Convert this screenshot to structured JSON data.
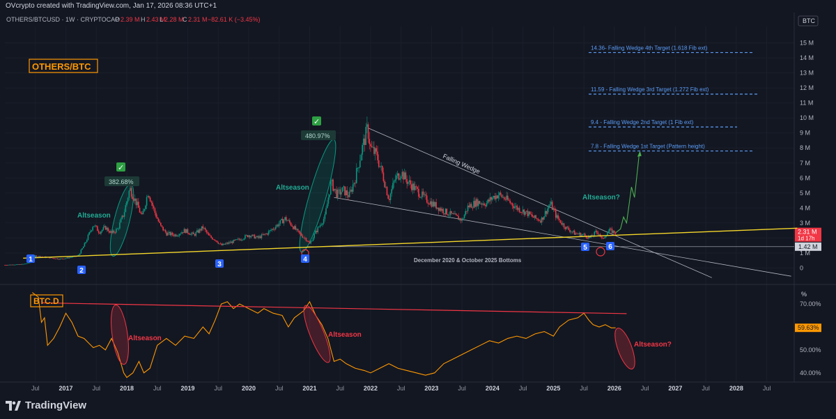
{
  "credit": "OVcrypto created with TradingView.com, Jan 17, 2026 08:36 UTC+1",
  "legend": {
    "symbol": "OTHERS/BTCUSD · 1W · CRYPTOCAP",
    "o_label": "O",
    "o_val": "2.39 M",
    "h_label": "H",
    "h_val": "2.43 M",
    "l_label": "L",
    "l_val": "2.28 M",
    "c_label": "C",
    "c_val": "2.31 M",
    "change": "−82.61 K (−3.45%)"
  },
  "price_scale_badge": "BTC",
  "pct_scale_badge": "%",
  "price_last": "2.31 M",
  "price_countdown": "1d 17h",
  "price_level": "1.42 M",
  "pct_last": "59.63%",
  "colors": {
    "bg": "#131722",
    "up": "#089981",
    "down": "#f23645",
    "trend": "#f5d72a",
    "btcd": "#ff9800",
    "target": "#5b9cf6",
    "wedge": "#b2b5be",
    "teal_text": "#22ab94",
    "red_text": "#f23645",
    "orange_label": "#ff9800"
  },
  "annotations": {
    "others_btc_label": "OTHERS/BTC",
    "btcd_label": "BTC.D",
    "altseason1": "Altseason",
    "altseason2": "Altseason",
    "altseason_q": "Altseason?",
    "pct1": "382.68%",
    "pct2": "480.97%",
    "falling_wedge": "Falling Wedge",
    "bottoms": "December 2020 & October 2025 Bottoms",
    "btcd_alt1": "Altseason",
    "btcd_alt2": "Altseason",
    "btcd_alt_q": "Altseason?",
    "check": "✓",
    "targets": [
      {
        "text": "14.36- Falling Wedge 4th Target (1.618 Fib ext)",
        "value": 14.36
      },
      {
        "text": "11.59 - Falling Wedge 3rd Target (1.272 Fib ext)",
        "value": 11.59
      },
      {
        "text": "9.4 - Falling Wedge 2nd Target (1 Fib ext)",
        "value": 9.4
      },
      {
        "text": "7.8 - Falling Wedge 1st Target (Pattern height)",
        "value": 7.8
      }
    ],
    "points": [
      "1",
      "2",
      "3",
      "4",
      "5",
      "6"
    ]
  },
  "chart_data": [
    {
      "type": "candlestick",
      "title": "OTHERS/BTCUSD · 1W · CRYPTOCAP",
      "unit": "M",
      "y_ticks": [
        "0",
        "1 M",
        "2 M",
        "3 M",
        "4 M",
        "5 M",
        "6 M",
        "7 M",
        "8 M",
        "9 M",
        "10 M",
        "11 M",
        "12 M",
        "13 M",
        "14 M",
        "15 M"
      ],
      "ylim": [
        -1.1,
        16.1
      ],
      "x_ticks": [
        "Jul",
        "2017",
        "Jul",
        "2018",
        "Jul",
        "2019",
        "Jul",
        "2020",
        "Jul",
        "2021",
        "Jul",
        "2022",
        "Jul",
        "2023",
        "Jul",
        "2024",
        "Jul",
        "2025",
        "Jul",
        "2026",
        "Jul",
        "2027",
        "Jul",
        "2028",
        "Jul"
      ],
      "x_tick_years": [
        2016.5,
        2017,
        2017.5,
        2018,
        2018.5,
        2019,
        2019.5,
        2020,
        2020.5,
        2021,
        2021.5,
        2022,
        2022.5,
        2023,
        2023.5,
        2024,
        2024.5,
        2025,
        2025.5,
        2026,
        2026.5,
        2027,
        2027.5,
        2028,
        2028.5
      ],
      "xlim": [
        2016.0,
        2028.95
      ],
      "series_path": [
        [
          2016.0,
          0.2
        ],
        [
          2016.3,
          0.25
        ],
        [
          2016.45,
          0.4
        ],
        [
          2016.5,
          0.8
        ],
        [
          2016.7,
          0.7
        ],
        [
          2016.9,
          0.6
        ],
        [
          2017.0,
          0.65
        ],
        [
          2017.2,
          0.8
        ],
        [
          2017.3,
          1.5
        ],
        [
          2017.45,
          2.9
        ],
        [
          2017.55,
          2.4
        ],
        [
          2017.65,
          2.7
        ],
        [
          2017.75,
          2.3
        ],
        [
          2017.85,
          2.6
        ],
        [
          2017.95,
          3.6
        ],
        [
          2018.05,
          5.3
        ],
        [
          2018.15,
          4.4
        ],
        [
          2018.25,
          3.4
        ],
        [
          2018.35,
          5.1
        ],
        [
          2018.45,
          3.8
        ],
        [
          2018.55,
          2.8
        ],
        [
          2018.65,
          2.3
        ],
        [
          2018.8,
          2.2
        ],
        [
          2018.95,
          2.5
        ],
        [
          2019.1,
          2.2
        ],
        [
          2019.25,
          2.7
        ],
        [
          2019.35,
          2.1
        ],
        [
          2019.45,
          1.9
        ],
        [
          2019.55,
          1.5
        ],
        [
          2019.7,
          1.7
        ],
        [
          2019.85,
          1.9
        ],
        [
          2020.0,
          2.2
        ],
        [
          2020.15,
          2.0
        ],
        [
          2020.3,
          2.3
        ],
        [
          2020.45,
          2.8
        ],
        [
          2020.6,
          3.3
        ],
        [
          2020.7,
          2.9
        ],
        [
          2020.8,
          2.4
        ],
        [
          2020.95,
          1.9
        ],
        [
          2021.0,
          1.6
        ],
        [
          2021.1,
          2.4
        ],
        [
          2021.25,
          3.4
        ],
        [
          2021.35,
          5.7
        ],
        [
          2021.45,
          4.9
        ],
        [
          2021.55,
          5.2
        ],
        [
          2021.65,
          4.8
        ],
        [
          2021.75,
          6.0
        ],
        [
          2021.85,
          7.8
        ],
        [
          2021.95,
          9.3
        ],
        [
          2022.0,
          8.0
        ],
        [
          2022.1,
          7.5
        ],
        [
          2022.2,
          6.2
        ],
        [
          2022.3,
          4.6
        ],
        [
          2022.4,
          5.9
        ],
        [
          2022.5,
          6.4
        ],
        [
          2022.6,
          5.8
        ],
        [
          2022.75,
          5.2
        ],
        [
          2022.9,
          4.6
        ],
        [
          2023.05,
          4.2
        ],
        [
          2023.2,
          3.8
        ],
        [
          2023.35,
          3.5
        ],
        [
          2023.5,
          3.2
        ],
        [
          2023.6,
          4.1
        ],
        [
          2023.75,
          4.4
        ],
        [
          2023.9,
          4.3
        ],
        [
          2024.0,
          4.7
        ],
        [
          2024.1,
          4.9
        ],
        [
          2024.25,
          4.5
        ],
        [
          2024.4,
          4.0
        ],
        [
          2024.55,
          3.7
        ],
        [
          2024.7,
          3.3
        ],
        [
          2024.8,
          3.2
        ],
        [
          2024.95,
          4.3
        ],
        [
          2025.05,
          3.4
        ],
        [
          2025.2,
          2.7
        ],
        [
          2025.35,
          2.3
        ],
        [
          2025.5,
          2.2
        ],
        [
          2025.6,
          2.0
        ],
        [
          2025.7,
          2.4
        ],
        [
          2025.75,
          2.3
        ],
        [
          2025.8,
          1.85
        ],
        [
          2025.85,
          2.2
        ],
        [
          2025.92,
          2.5
        ],
        [
          2026.02,
          2.35
        ]
      ],
      "projection": [
        [
          2026.02,
          2.35
        ],
        [
          2026.1,
          2.6
        ],
        [
          2026.15,
          3.4
        ],
        [
          2026.2,
          3.0
        ],
        [
          2026.28,
          5.4
        ],
        [
          2026.33,
          4.7
        ],
        [
          2026.41,
          7.7
        ]
      ],
      "trendline": [
        [
          2016.3,
          0.65
        ],
        [
          2029.0,
          2.65
        ]
      ],
      "wedge_upper": [
        [
          2021.95,
          9.35
        ],
        [
          2027.6,
          -0.65
        ]
      ],
      "wedge_lower": [
        [
          2021.4,
          4.7
        ],
        [
          2028.9,
          -0.55
        ]
      ],
      "bottom_level": 1.42,
      "last": 2.31
    },
    {
      "type": "line",
      "title": "BTC.D",
      "unit": "%",
      "y_ticks": [
        "40.00%",
        "50.00%",
        "60.00%",
        "70.00%"
      ],
      "ylim": [
        36,
        77
      ],
      "series": [
        {
          "values_path": [
            [
              2016.45,
              75
            ],
            [
              2016.55,
              73
            ],
            [
              2016.6,
              62
            ],
            [
              2016.65,
              64
            ],
            [
              2016.7,
              52
            ],
            [
              2016.8,
              55
            ],
            [
              2016.9,
              60
            ],
            [
              2017.0,
              66
            ],
            [
              2017.1,
              62
            ],
            [
              2017.2,
              56
            ],
            [
              2017.3,
              55
            ],
            [
              2017.45,
              51
            ],
            [
              2017.55,
              52
            ],
            [
              2017.65,
              50
            ],
            [
              2017.75,
              55
            ],
            [
              2017.85,
              49
            ],
            [
              2017.95,
              40
            ],
            [
              2018.0,
              38
            ],
            [
              2018.1,
              40
            ],
            [
              2018.2,
              45
            ],
            [
              2018.28,
              40
            ],
            [
              2018.38,
              42
            ],
            [
              2018.5,
              52
            ],
            [
              2018.65,
              55
            ],
            [
              2018.8,
              52
            ],
            [
              2018.95,
              56
            ],
            [
              2019.1,
              55
            ],
            [
              2019.25,
              60
            ],
            [
              2019.35,
              57
            ],
            [
              2019.45,
              63
            ],
            [
              2019.55,
              70
            ],
            [
              2019.65,
              71
            ],
            [
              2019.75,
              68
            ],
            [
              2019.85,
              70
            ],
            [
              2020.0,
              68
            ],
            [
              2020.15,
              66
            ],
            [
              2020.25,
              68
            ],
            [
              2020.4,
              66
            ],
            [
              2020.55,
              65
            ],
            [
              2020.65,
              60
            ],
            [
              2020.75,
              64
            ],
            [
              2020.9,
              67
            ],
            [
              2021.0,
              71
            ],
            [
              2021.1,
              65
            ],
            [
              2021.2,
              61
            ],
            [
              2021.3,
              55
            ],
            [
              2021.4,
              45
            ],
            [
              2021.5,
              46
            ],
            [
              2021.6,
              44
            ],
            [
              2021.75,
              42
            ],
            [
              2021.9,
              41
            ],
            [
              2022.0,
              40
            ],
            [
              2022.15,
              42
            ],
            [
              2022.3,
              44
            ],
            [
              2022.45,
              42
            ],
            [
              2022.6,
              41
            ],
            [
              2022.75,
              40
            ],
            [
              2022.9,
              39
            ],
            [
              2023.05,
              40
            ],
            [
              2023.2,
              44
            ],
            [
              2023.35,
              46
            ],
            [
              2023.5,
              48
            ],
            [
              2023.65,
              50
            ],
            [
              2023.8,
              52
            ],
            [
              2023.95,
              54
            ],
            [
              2024.1,
              53
            ],
            [
              2024.25,
              55
            ],
            [
              2024.4,
              56
            ],
            [
              2024.55,
              55
            ],
            [
              2024.7,
              57
            ],
            [
              2024.85,
              58
            ],
            [
              2025.0,
              56
            ],
            [
              2025.1,
              60
            ],
            [
              2025.25,
              63
            ],
            [
              2025.4,
              64
            ],
            [
              2025.5,
              66
            ],
            [
              2025.58,
              63
            ],
            [
              2025.65,
              61
            ],
            [
              2025.75,
              60
            ],
            [
              2025.85,
              61
            ],
            [
              2025.95,
              59.6
            ],
            [
              2026.02,
              59.63
            ]
          ]
        }
      ],
      "resistance": [
        [
          2016.6,
          70.5
        ],
        [
          2026.2,
          65.8
        ]
      ],
      "last": 59.63
    }
  ]
}
